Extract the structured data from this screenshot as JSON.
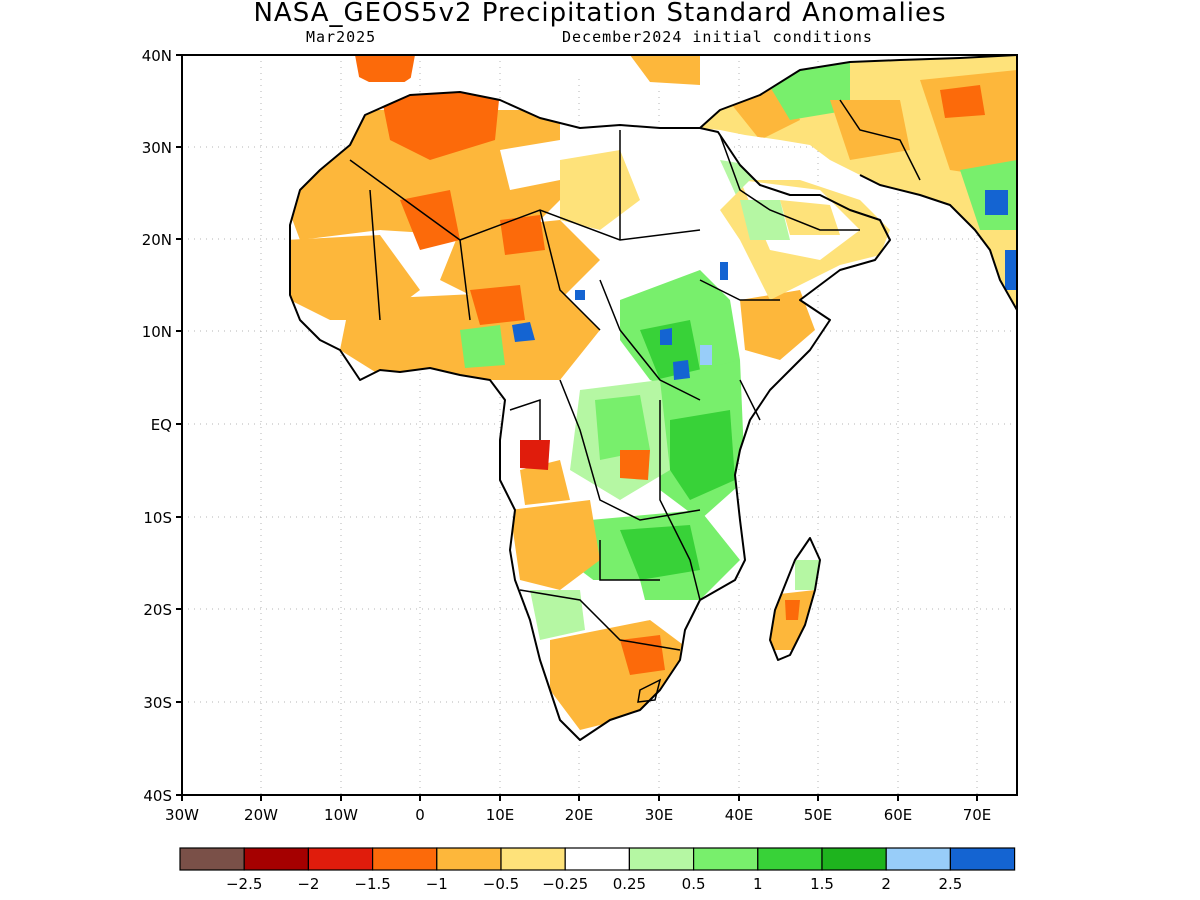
{
  "title": "NASA_GEOS5v2 Precipitation Standard Anomalies",
  "subtitle_left": "Mar2025",
  "subtitle_right": "December2024 initial conditions",
  "axes": {
    "lat_labels": [
      "40N",
      "30N",
      "20N",
      "10N",
      "EQ",
      "10S",
      "20S",
      "30S",
      "40S"
    ],
    "lon_labels": [
      "30W",
      "20W",
      "10W",
      "0",
      "10E",
      "20E",
      "30E",
      "40E",
      "50E",
      "60E",
      "70E"
    ]
  },
  "legend": {
    "colors": [
      "#7a5048",
      "#a50000",
      "#e01c0c",
      "#fc6a0a",
      "#fdb73b",
      "#fee27a",
      "#ffffff",
      "#b5f7a3",
      "#78ef6c",
      "#38d238",
      "#1eb41e",
      "#98cdf9",
      "#1464d2"
    ],
    "labels": [
      "−2.5",
      "−2",
      "−1.5",
      "−1",
      "−0.5",
      "−0.25",
      "0.25",
      "0.5",
      "1",
      "1.5",
      "2",
      "2.5"
    ]
  }
}
